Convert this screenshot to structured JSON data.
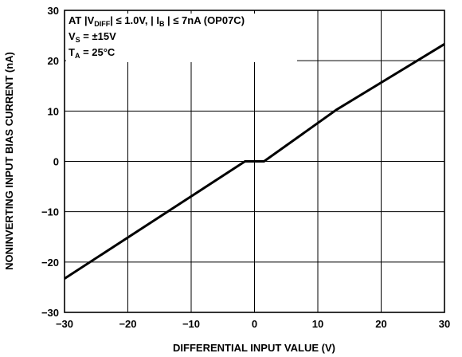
{
  "chart_data": {
    "type": "line",
    "xlabel": "DIFFERENTIAL INPUT VALUE (V)",
    "ylabel": "NONINVERTING INPUT BIAS CURRENT (nA)",
    "xlim": [
      -30,
      30
    ],
    "ylim": [
      -30,
      30
    ],
    "x_ticks": [
      -30,
      -20,
      -10,
      0,
      10,
      20,
      30
    ],
    "y_ticks": [
      -30,
      -20,
      -10,
      0,
      10,
      20,
      30
    ],
    "x_tick_labels": [
      "−30",
      "−20",
      "−10",
      "0",
      "10",
      "20",
      "30"
    ],
    "y_tick_labels": [
      "−30",
      "−20",
      "−10",
      "0",
      "10",
      "20",
      "30"
    ],
    "grid": true,
    "annotation": {
      "line1": {
        "a": "AT |V",
        "a_sub": "DIFF",
        "b": "| ≤ 1.0V, | I",
        "b_sub": "B",
        "c": " | ≤ 7nA (OP07C)"
      },
      "line2": {
        "a": "V",
        "a_sub": "S",
        "b": " = ±15V"
      },
      "line3": {
        "a": "T",
        "a_sub": "A",
        "b": " = 25°C"
      }
    },
    "series": [
      {
        "x": [
          -30,
          -1.5,
          1.5,
          13,
          30
        ],
        "y": [
          -23.3,
          0,
          0,
          10.3,
          23.3
        ]
      }
    ]
  }
}
